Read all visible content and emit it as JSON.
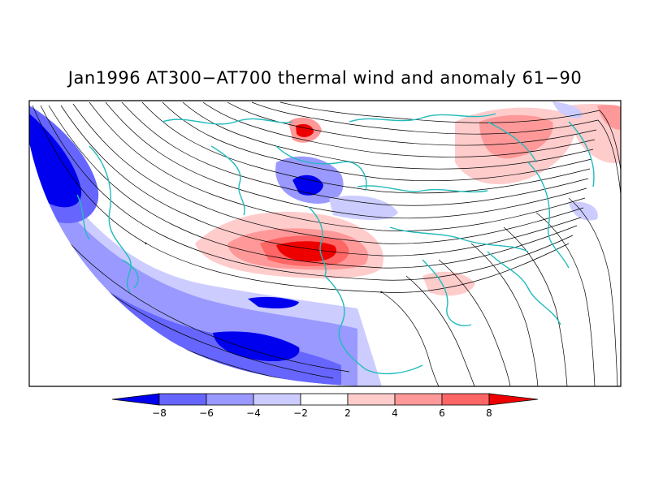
{
  "title": "Jan1996 AT300−AT700 thermal wind and anomaly 61−90",
  "colorbar": {
    "labels": [
      "−8",
      "−6",
      "−4",
      "−2",
      "2",
      "4",
      "6",
      "8"
    ],
    "colors": [
      "#0000ee",
      "#6666ff",
      "#9999ff",
      "#ccccff",
      "#ffffff",
      "#ffcccc",
      "#ff9999",
      "#ff6666",
      "#ee0000"
    ]
  },
  "colors": {
    "coastline": "#22bbbb",
    "streamline": "#000000",
    "frame": "#000000"
  }
}
